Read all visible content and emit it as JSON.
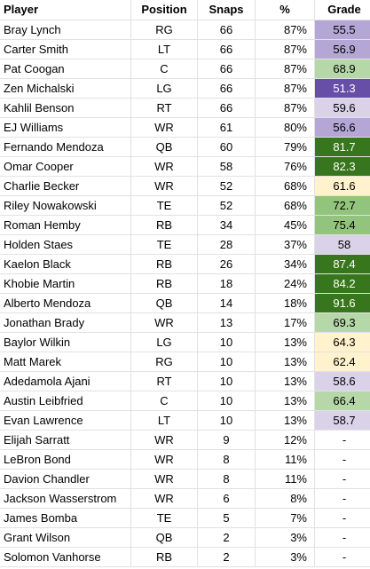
{
  "header": {
    "player": "Player",
    "position": "Position",
    "snaps": "Snaps",
    "pct": "%",
    "grade": "Grade"
  },
  "colors": {
    "purple_light": "#d9d2e9",
    "purple_mid": "#b4a7d6",
    "purple_dark": "#674ea7",
    "green_light": "#b6d7a8",
    "green_mid": "#93c47d",
    "green_dark": "#38761d",
    "yellow_light": "#fff2cc"
  },
  "rows": [
    {
      "player": "Bray Lynch",
      "position": "RG",
      "snaps": "66",
      "pct": "87%",
      "grade": "55.5",
      "tier": "purple_mid"
    },
    {
      "player": "Carter Smith",
      "position": "LT",
      "snaps": "66",
      "pct": "87%",
      "grade": "56.9",
      "tier": "purple_mid"
    },
    {
      "player": "Pat Coogan",
      "position": "C",
      "snaps": "66",
      "pct": "87%",
      "grade": "68.9",
      "tier": "green_light"
    },
    {
      "player": "Zen Michalski",
      "position": "LG",
      "snaps": "66",
      "pct": "87%",
      "grade": "51.3",
      "tier": "purple_dark"
    },
    {
      "player": "Kahlil Benson",
      "position": "RT",
      "snaps": "66",
      "pct": "87%",
      "grade": "59.6",
      "tier": "purple_light"
    },
    {
      "player": "EJ Williams",
      "position": "WR",
      "snaps": "61",
      "pct": "80%",
      "grade": "56.6",
      "tier": "purple_mid"
    },
    {
      "player": "Fernando Mendoza",
      "position": "QB",
      "snaps": "60",
      "pct": "79%",
      "grade": "81.7",
      "tier": "green_dark"
    },
    {
      "player": "Omar Cooper",
      "position": "WR",
      "snaps": "58",
      "pct": "76%",
      "grade": "82.3",
      "tier": "green_dark"
    },
    {
      "player": "Charlie Becker",
      "position": "WR",
      "snaps": "52",
      "pct": "68%",
      "grade": "61.6",
      "tier": "yellow_light"
    },
    {
      "player": "Riley Nowakowski",
      "position": "TE",
      "snaps": "52",
      "pct": "68%",
      "grade": "72.7",
      "tier": "green_mid"
    },
    {
      "player": "Roman Hemby",
      "position": "RB",
      "snaps": "34",
      "pct": "45%",
      "grade": "75.4",
      "tier": "green_mid"
    },
    {
      "player": "Holden Staes",
      "position": "TE",
      "snaps": "28",
      "pct": "37%",
      "grade": "58",
      "tier": "purple_light"
    },
    {
      "player": "Kaelon Black",
      "position": "RB",
      "snaps": "26",
      "pct": "34%",
      "grade": "87.4",
      "tier": "green_dark"
    },
    {
      "player": "Khobie Martin",
      "position": "RB",
      "snaps": "18",
      "pct": "24%",
      "grade": "84.2",
      "tier": "green_dark"
    },
    {
      "player": "Alberto Mendoza",
      "position": "QB",
      "snaps": "14",
      "pct": "18%",
      "grade": "91.6",
      "tier": "green_dark"
    },
    {
      "player": "Jonathan Brady",
      "position": "WR",
      "snaps": "13",
      "pct": "17%",
      "grade": "69.3",
      "tier": "green_light"
    },
    {
      "player": "Baylor Wilkin",
      "position": "LG",
      "snaps": "10",
      "pct": "13%",
      "grade": "64.3",
      "tier": "yellow_light"
    },
    {
      "player": "Matt Marek",
      "position": "RG",
      "snaps": "10",
      "pct": "13%",
      "grade": "62.4",
      "tier": "yellow_light"
    },
    {
      "player": "Adedamola Ajani",
      "position": "RT",
      "snaps": "10",
      "pct": "13%",
      "grade": "58.6",
      "tier": "purple_light"
    },
    {
      "player": "Austin Leibfried",
      "position": "C",
      "snaps": "10",
      "pct": "13%",
      "grade": "66.4",
      "tier": "green_light"
    },
    {
      "player": "Evan Lawrence",
      "position": "LT",
      "snaps": "10",
      "pct": "13%",
      "grade": "58.7",
      "tier": "purple_light"
    },
    {
      "player": "Elijah Sarratt",
      "position": "WR",
      "snaps": "9",
      "pct": "12%",
      "grade": "-",
      "tier": "none"
    },
    {
      "player": "LeBron Bond",
      "position": "WR",
      "snaps": "8",
      "pct": "11%",
      "grade": "-",
      "tier": "none"
    },
    {
      "player": "Davion Chandler",
      "position": "WR",
      "snaps": "8",
      "pct": "11%",
      "grade": "-",
      "tier": "none"
    },
    {
      "player": "Jackson Wasserstrom",
      "position": "WR",
      "snaps": "6",
      "pct": "8%",
      "grade": "-",
      "tier": "none"
    },
    {
      "player": "James Bomba",
      "position": "TE",
      "snaps": "5",
      "pct": "7%",
      "grade": "-",
      "tier": "none"
    },
    {
      "player": "Grant Wilson",
      "position": "QB",
      "snaps": "2",
      "pct": "3%",
      "grade": "-",
      "tier": "none"
    },
    {
      "player": "Solomon Vanhorse",
      "position": "RB",
      "snaps": "2",
      "pct": "3%",
      "grade": "-",
      "tier": "none"
    }
  ]
}
